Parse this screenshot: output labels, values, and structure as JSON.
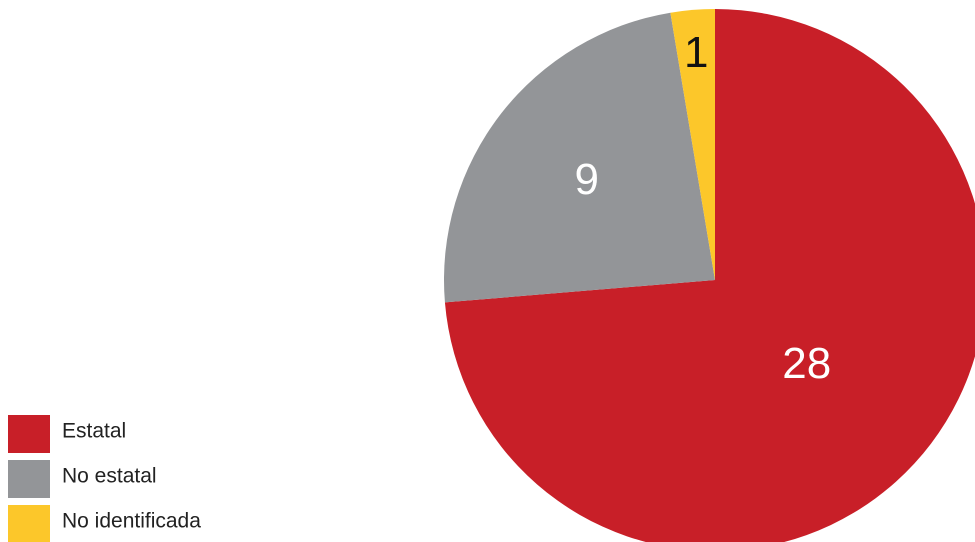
{
  "chart_data": {
    "type": "pie",
    "categories": [
      "Estatal",
      "No estatal",
      "No identificada"
    ],
    "values": [
      28,
      9,
      1
    ],
    "colors": [
      "#c81f28",
      "#939598",
      "#fcc72a"
    ],
    "legend": "bottom-left"
  }
}
